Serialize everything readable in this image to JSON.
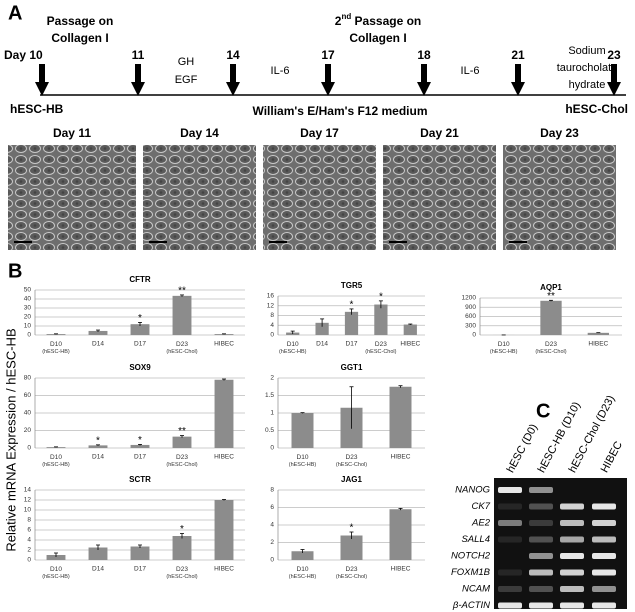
{
  "timeline": {
    "label": "A",
    "days": [
      "Day 10",
      "11",
      "14",
      "17",
      "18",
      "21",
      "23"
    ],
    "passage1": [
      "Passage on",
      "Collagen I"
    ],
    "passage2": [
      "2",
      "nd",
      " Passage on",
      "Collagen I"
    ],
    "gh_egf": [
      "GH",
      "EGF"
    ],
    "il6_a": "IL-6",
    "il6_b": "IL-6",
    "sodium": [
      "Sodium",
      "taurocholate",
      "hydrate"
    ],
    "start": "hESC-HB",
    "medium": "William's E/Ham's F12 medium",
    "end": "hESC-Chol",
    "micrographs": [
      "Day 11",
      "Day 14",
      "Day 17",
      "Day 21",
      "Day 23"
    ]
  },
  "panel_b": {
    "label": "B",
    "y_label": "Relative mRNA Expression / hESC-HB"
  },
  "chart_data": [
    {
      "type": "bar",
      "title": "CFTR",
      "color": "#8c8c8c",
      "grid": true,
      "categories": [
        "D10 (hESC-HB)",
        "D14",
        "D17",
        "D23 (hESC-Chol)",
        "HIBEC"
      ],
      "values": [
        1,
        4.5,
        12,
        43.5,
        1
      ],
      "errors": [
        0.3,
        1,
        2,
        1,
        0.3
      ],
      "annotations": [
        null,
        null,
        "*",
        "**",
        null
      ],
      "ylim": [
        0,
        50
      ],
      "yticks": [
        0,
        10,
        20,
        30,
        40,
        50
      ]
    },
    {
      "type": "bar",
      "title": "TGR5",
      "color": "#8c8c8c",
      "grid": true,
      "categories": [
        "D10 (hESC-HB)",
        "D14",
        "D17",
        "D23 (hESC-Chol)",
        "HIBEC"
      ],
      "values": [
        1,
        5,
        9.5,
        12.5,
        4.3
      ],
      "errors": [
        0.6,
        1.6,
        1.2,
        1.5,
        0.2
      ],
      "annotations": [
        null,
        null,
        "*",
        "*",
        null
      ],
      "ylim": [
        0,
        16
      ],
      "yticks": [
        0,
        4,
        8,
        12,
        16
      ]
    },
    {
      "type": "bar",
      "title": "AQP1",
      "color": "#8c8c8c",
      "grid": true,
      "categories": [
        "D10 (hESC-HB)",
        "D23 (hESC-Chol)",
        "HIBEC"
      ],
      "values": [
        1,
        1110,
        70
      ],
      "errors": [
        0.5,
        15,
        6
      ],
      "annotations": [
        null,
        "**",
        null
      ],
      "ylim": [
        0,
        1200
      ],
      "yticks": [
        0,
        300,
        600,
        900,
        1200
      ]
    },
    {
      "type": "bar",
      "title": "SOX9",
      "color": "#8c8c8c",
      "grid": true,
      "categories": [
        "D10 (hESC-HB)",
        "D14",
        "D17",
        "D23 (hESC-Chol)",
        "HIBEC"
      ],
      "values": [
        1,
        3,
        3.5,
        13,
        78
      ],
      "errors": [
        0.3,
        0.6,
        0.6,
        1.2,
        0.8
      ],
      "annotations": [
        null,
        "*",
        "*",
        "**",
        null
      ],
      "ylim": [
        0,
        80
      ],
      "yticks": [
        0,
        20,
        40,
        60,
        80
      ]
    },
    {
      "type": "bar",
      "title": "GGT1",
      "color": "#8c8c8c",
      "grid": true,
      "categories": [
        "D10 (hESC-HB)",
        "D23 (hESC-Chol)",
        "HIBEC"
      ],
      "values": [
        1,
        1.15,
        1.75
      ],
      "errors": [
        0.01,
        0.6,
        0.03
      ],
      "annotations": [
        null,
        null,
        null
      ],
      "ylim": [
        0,
        2
      ],
      "yticks": [
        0,
        0.5,
        1,
        1.5,
        2
      ]
    },
    {
      "type": "bar",
      "title": "SCTR",
      "color": "#8c8c8c",
      "grid": true,
      "categories": [
        "D10 (hESC-HB)",
        "D14",
        "D17",
        "D23 (hESC-Chol)",
        "HIBEC"
      ],
      "values": [
        1,
        2.5,
        2.7,
        4.8,
        12
      ],
      "errors": [
        0.4,
        0.5,
        0.3,
        0.5,
        0.1
      ],
      "annotations": [
        null,
        null,
        null,
        "*",
        null
      ],
      "ylim": [
        0,
        14
      ],
      "yticks": [
        0,
        2,
        4,
        6,
        8,
        10,
        12,
        14
      ]
    },
    {
      "type": "bar",
      "title": "JAG1",
      "color": "#8c8c8c",
      "grid": true,
      "categories": [
        "D10 (hESC-HB)",
        "D23 (hESC-Chol)",
        "HIBEC"
      ],
      "values": [
        1,
        2.8,
        5.8
      ],
      "errors": [
        0.2,
        0.4,
        0.1
      ],
      "annotations": [
        null,
        "*",
        null
      ],
      "ylim": [
        0,
        8
      ],
      "yticks": [
        0,
        2,
        4,
        6,
        8
      ]
    }
  ],
  "gel": {
    "label": "C",
    "lanes": [
      "hESC (D0)",
      "hESC-HB (D10)",
      "hESC-Chol (D23)",
      "HIBEC"
    ],
    "genes": [
      "NANOG",
      "CK7",
      "AE2",
      "SALL4",
      "NOTCH2",
      "FOXM1B",
      "NCAM",
      "β-ACTIN"
    ]
  }
}
